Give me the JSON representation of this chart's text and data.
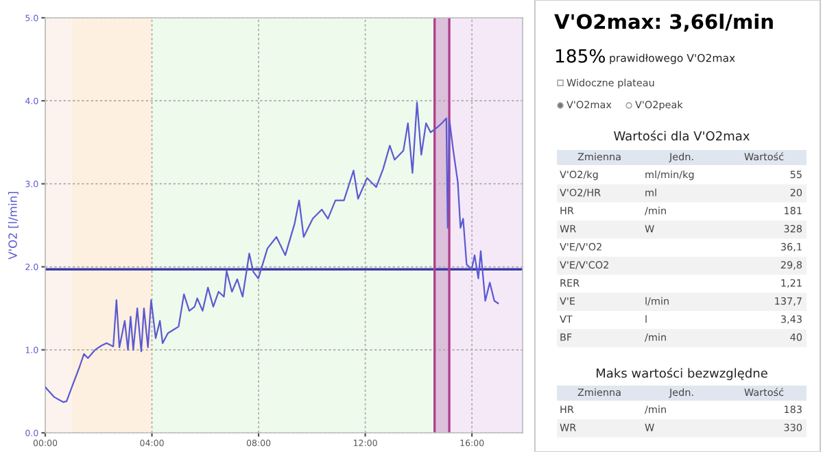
{
  "chart_data": [
    {
      "type": "line",
      "ylabel": "V'O2 [l/min]",
      "color": "#5a5ad2",
      "x": [
        0,
        0.34,
        0.68,
        0.8,
        1.02,
        1.28,
        1.45,
        1.6,
        1.87,
        2.1,
        2.3,
        2.55,
        2.67,
        2.78,
        2.98,
        3.1,
        3.2,
        3.3,
        3.45,
        3.6,
        3.7,
        3.85,
        3.97,
        4.14,
        4.3,
        4.4,
        4.6,
        5.0,
        5.2,
        5.4,
        5.6,
        5.7,
        5.9,
        6.1,
        6.3,
        6.5,
        6.7,
        6.8,
        7.0,
        7.2,
        7.4,
        7.65,
        7.8,
        7.99,
        8.33,
        8.67,
        9.0,
        9.35,
        9.52,
        9.69,
        10.03,
        10.37,
        10.6,
        10.88,
        11.2,
        11.56,
        11.73,
        12.07,
        12.41,
        12.67,
        12.92,
        13.1,
        13.43,
        13.6,
        13.77,
        13.94,
        14.1,
        14.28,
        14.45,
        14.7,
        14.87,
        15.04,
        15.09,
        15.16,
        15.3,
        15.47,
        15.57,
        15.67,
        15.8,
        15.99,
        16.1,
        16.24,
        16.33,
        16.5,
        16.67,
        16.84,
        16.98
      ],
      "values": [
        0.55,
        0.43,
        0.37,
        0.38,
        0.57,
        0.79,
        0.95,
        0.9,
        1.0,
        1.05,
        1.08,
        1.04,
        1.6,
        1.03,
        1.35,
        1.0,
        1.4,
        1.0,
        1.5,
        0.98,
        1.5,
        1.03,
        1.6,
        1.14,
        1.35,
        1.08,
        1.2,
        1.28,
        1.67,
        1.47,
        1.52,
        1.62,
        1.47,
        1.75,
        1.52,
        1.7,
        1.64,
        1.95,
        1.7,
        1.85,
        1.64,
        2.16,
        1.94,
        1.86,
        2.22,
        2.36,
        2.14,
        2.52,
        2.8,
        2.36,
        2.58,
        2.69,
        2.58,
        2.8,
        2.8,
        3.16,
        2.82,
        3.07,
        2.96,
        3.18,
        3.46,
        3.29,
        3.4,
        3.73,
        3.13,
        3.98,
        3.35,
        3.73,
        3.62,
        3.68,
        3.73,
        3.79,
        2.47,
        3.76,
        3.4,
        3.02,
        2.47,
        2.58,
        2.03,
        1.97,
        2.14,
        1.86,
        2.19,
        1.59,
        1.81,
        1.59,
        1.56
      ],
      "xlim": [
        0,
        17.9
      ],
      "ylim": [
        0,
        5
      ],
      "xticks": [
        {
          "value": 0,
          "label": "00:00"
        },
        {
          "value": 4,
          "label": "04:00"
        },
        {
          "value": 8,
          "label": "08:00"
        },
        {
          "value": 12,
          "label": "12:00"
        },
        {
          "value": 16,
          "label": "16:00"
        }
      ],
      "yticks": [
        {
          "value": 0,
          "label": "0.0"
        },
        {
          "value": 1,
          "label": "1.0"
        },
        {
          "value": 2,
          "label": "2.0"
        },
        {
          "value": 3,
          "label": "3.0"
        },
        {
          "value": 4,
          "label": "4.0"
        },
        {
          "value": 5,
          "label": "5.0"
        }
      ],
      "grid": true,
      "line_style": "solid",
      "bands": [
        {
          "axis": "x",
          "from": 0,
          "to": 1,
          "color": "#fdf3ee"
        },
        {
          "axis": "x",
          "from": 1,
          "to": 4,
          "color": "#fdf0e0"
        },
        {
          "axis": "x",
          "from": 4,
          "to": 14.6,
          "color": "#eefaec"
        },
        {
          "axis": "x",
          "from": 14.6,
          "to": 15.15,
          "color": "#dcc0dc"
        },
        {
          "axis": "x",
          "from": 15.15,
          "to": 17.9,
          "color": "#f5e9f8"
        }
      ],
      "ref_lines": [
        {
          "axis": "y",
          "value": 1.97,
          "color": "#3a3aa8"
        },
        {
          "axis": "x",
          "value": 14.6,
          "color": "#b0408a"
        },
        {
          "axis": "x",
          "value": 15.15,
          "color": "#b0408a"
        }
      ]
    },
    {
      "type": "other",
      "title": "V'O2max: 3,66l/min",
      "subtitle": "185%",
      "annotations": [
        "prawidłowego V'O2max",
        "Widoczne plateau",
        "V'O2max",
        "V'O2peak",
        "Wartości dla V'O2max",
        "Zmienna",
        "Jedn.",
        "Wartość",
        "V'O2/kg",
        "ml/min/kg",
        "55",
        "V'O2/HR",
        "ml",
        "20",
        "HR",
        "/min",
        "181",
        "WR",
        "W",
        "328",
        "V'E/V'O2",
        "36,1",
        "V'E/V'CO2",
        "29,8",
        "RER",
        "1,21",
        "V'E",
        "l/min",
        "137,7",
        "VT",
        "l",
        "3,43",
        "BF",
        "/min",
        "40",
        "Maks wartości bezwzględne",
        "Zmienna",
        "Jedn.",
        "Wartość",
        "HR",
        "/min",
        "183",
        "WR",
        "W",
        "330"
      ]
    }
  ]
}
